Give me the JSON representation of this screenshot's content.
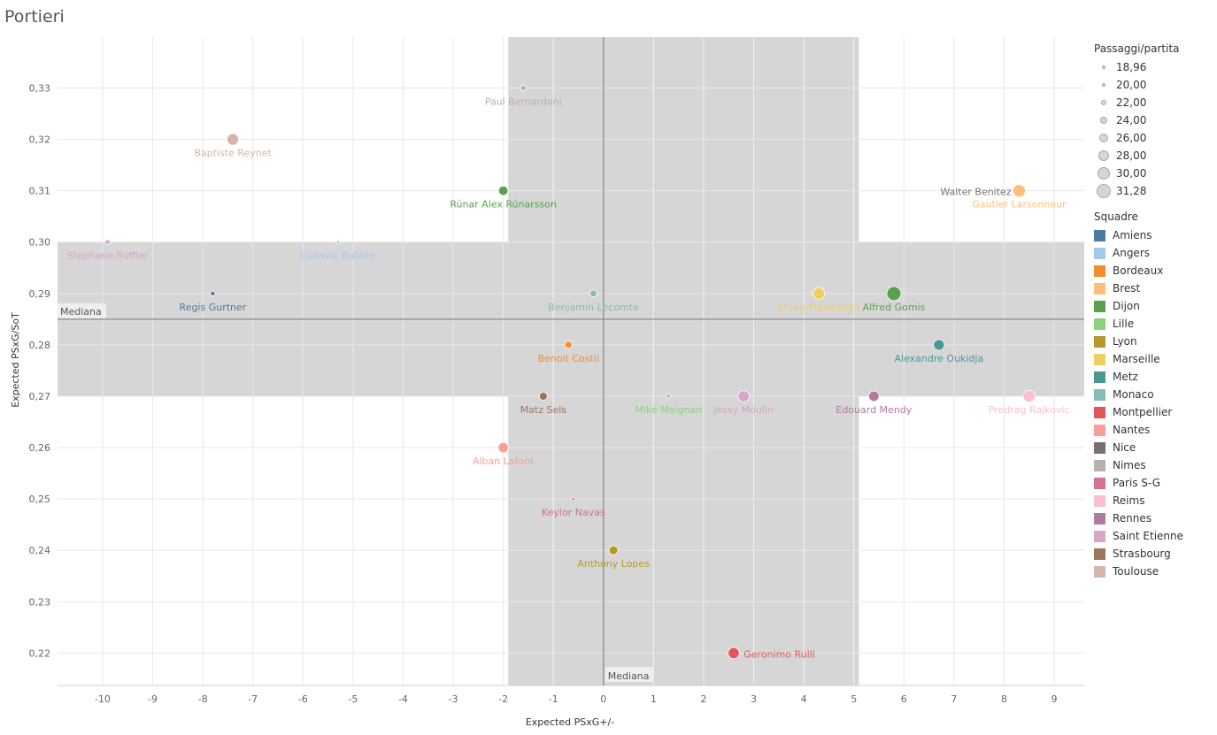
{
  "title": "Portieri",
  "chart_data": {
    "type": "scatter",
    "title": "Portieri",
    "xlabel": "Expected PSxG+/-",
    "ylabel": "Expected PSxG/SoT",
    "xlim": [
      -10.9,
      9.6
    ],
    "ylim": [
      0.2137,
      0.3399
    ],
    "x_ticks": [
      -10,
      -9,
      -8,
      -7,
      -6,
      -5,
      -4,
      -3,
      -2,
      -1,
      0,
      1,
      2,
      3,
      4,
      5,
      6,
      7,
      8,
      9
    ],
    "x_tick_labels": [
      "-10",
      "-9",
      "-8",
      "-7",
      "-6",
      "-5",
      "-4",
      "-3",
      "-2",
      "-1",
      "0",
      "1",
      "2",
      "3",
      "4",
      "5",
      "6",
      "7",
      "8",
      "9"
    ],
    "y_ticks": [
      0.22,
      0.23,
      0.24,
      0.25,
      0.26,
      0.27,
      0.28,
      0.29,
      0.3,
      0.31,
      0.32,
      0.33
    ],
    "y_tick_labels": [
      "0,22",
      "0,23",
      "0,24",
      "0,25",
      "0,26",
      "0,27",
      "0,28",
      "0,29",
      "0,30",
      "0,31",
      "0,32",
      "0,33"
    ],
    "grid": true,
    "median_x": 0,
    "median_y": 0.285,
    "median_label": "Mediana",
    "band_x": [
      -1.9,
      5.1
    ],
    "band_y": [
      0.27,
      0.3
    ],
    "legend_position": "right",
    "size_legend": {
      "title": "Passaggi/partita",
      "entries": [
        "18,96",
        "20,00",
        "22,00",
        "24,00",
        "26,00",
        "28,00",
        "30,00",
        "31,28"
      ],
      "values": [
        18.96,
        20,
        22,
        24,
        26,
        28,
        30,
        31.28
      ]
    },
    "color_legend": {
      "title": "Squadre",
      "teams": [
        {
          "name": "Amiens",
          "color": "#4e79a7"
        },
        {
          "name": "Angers",
          "color": "#a0cbe8"
        },
        {
          "name": "Bordeaux",
          "color": "#f28e2b"
        },
        {
          "name": "Brest",
          "color": "#ffbe7d"
        },
        {
          "name": "Dijon",
          "color": "#59a14f"
        },
        {
          "name": "Lille",
          "color": "#8cd17d"
        },
        {
          "name": "Lyon",
          "color": "#b6992d"
        },
        {
          "name": "Marseille",
          "color": "#f1ce63"
        },
        {
          "name": "Metz",
          "color": "#499894"
        },
        {
          "name": "Monaco",
          "color": "#86bcb6"
        },
        {
          "name": "Montpellier",
          "color": "#e15759"
        },
        {
          "name": "Nantes",
          "color": "#ff9d9a"
        },
        {
          "name": "Nice",
          "color": "#79706e"
        },
        {
          "name": "Nimes",
          "color": "#bab0ac"
        },
        {
          "name": "Paris S-G",
          "color": "#d37295"
        },
        {
          "name": "Reims",
          "color": "#fabfd2"
        },
        {
          "name": "Rennes",
          "color": "#b07aa1"
        },
        {
          "name": "Saint Etienne",
          "color": "#d4a6c8"
        },
        {
          "name": "Strasbourg",
          "color": "#9d7660"
        },
        {
          "name": "Toulouse",
          "color": "#d7b5a6"
        }
      ]
    },
    "points": [
      {
        "name": "Paul Bernardoni",
        "team": "Nimes",
        "x": -1.6,
        "y": 0.33,
        "passes": 21.5
      },
      {
        "name": "Baptiste Reynet",
        "team": "Toulouse",
        "x": -7.4,
        "y": 0.32,
        "passes": 28.5
      },
      {
        "name": "Rúnar Alex Rúnarsson",
        "team": "Dijon",
        "x": -2.0,
        "y": 0.31,
        "passes": 26.0
      },
      {
        "name": "Walter Benitez",
        "team": "Nice",
        "x": 8.3,
        "y": 0.31,
        "passes": 25.0
      },
      {
        "name": "Gautier Larsonneur",
        "team": "Brest",
        "x": 8.3,
        "y": 0.31,
        "passes": 29.5
      },
      {
        "name": "Stephane Ruffier",
        "team": "Saint Etienne",
        "x": -9.9,
        "y": 0.3,
        "passes": 21.0
      },
      {
        "name": "Ludovic Butelle",
        "team": "Angers",
        "x": -5.3,
        "y": 0.3,
        "passes": 18.96
      },
      {
        "name": "Regis Gurtner",
        "team": "Amiens",
        "x": -7.8,
        "y": 0.29,
        "passes": 20.5
      },
      {
        "name": "Benjamin Lecomte",
        "team": "Monaco",
        "x": -0.2,
        "y": 0.29,
        "passes": 23.0
      },
      {
        "name": "Steve Mandanda",
        "team": "Marseille",
        "x": 4.3,
        "y": 0.29,
        "passes": 28.5
      },
      {
        "name": "Alfred Gomis",
        "team": "Dijon",
        "x": 5.8,
        "y": 0.29,
        "passes": 31.28
      },
      {
        "name": "Benoit Costil",
        "team": "Bordeaux",
        "x": -0.7,
        "y": 0.28,
        "passes": 23.5
      },
      {
        "name": "Alexandre Oukidja",
        "team": "Metz",
        "x": 6.7,
        "y": 0.28,
        "passes": 27.5
      },
      {
        "name": "Matz Sels",
        "team": "Strasbourg",
        "x": -1.2,
        "y": 0.27,
        "passes": 24.5
      },
      {
        "name": "Mike Maignan",
        "team": "Lille",
        "x": 1.3,
        "y": 0.27,
        "passes": 20.0
      },
      {
        "name": "Jessy Moulin",
        "team": "Saint Etienne",
        "x": 2.8,
        "y": 0.27,
        "passes": 28.0
      },
      {
        "name": "Edouard Mendy",
        "team": "Rennes",
        "x": 5.4,
        "y": 0.27,
        "passes": 27.0
      },
      {
        "name": "Predrag Rajkovic",
        "team": "Reims",
        "x": 8.5,
        "y": 0.27,
        "passes": 29.0
      },
      {
        "name": "Alban Lafont",
        "team": "Nantes",
        "x": -2.0,
        "y": 0.26,
        "passes": 27.0
      },
      {
        "name": "Keylor Navas",
        "team": "Paris S-G",
        "x": -0.6,
        "y": 0.25,
        "passes": 19.0
      },
      {
        "name": "Anthony Lopes",
        "team": "Lyon",
        "x": 0.2,
        "y": 0.24,
        "passes": 25.5
      },
      {
        "name": "Geronimo Rulli",
        "team": "Montpellier",
        "x": 2.6,
        "y": 0.22,
        "passes": 28.0
      }
    ]
  }
}
